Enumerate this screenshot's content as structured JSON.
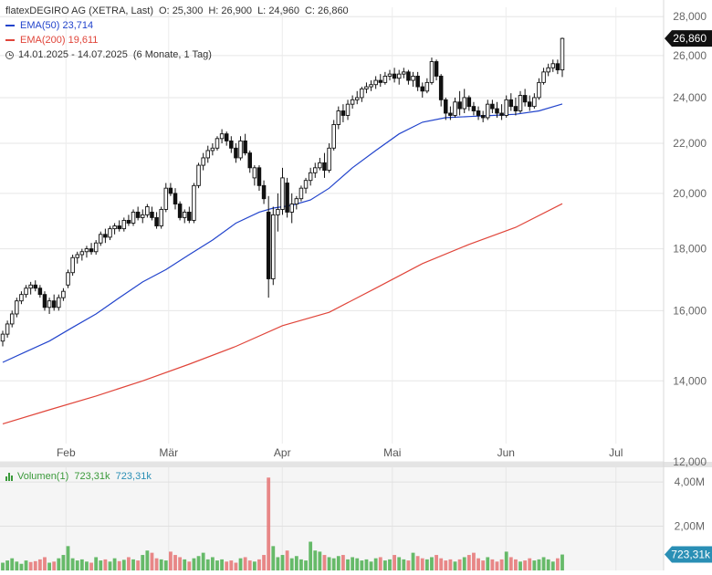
{
  "legend": {
    "instrument": "flatexDEGIRO AG (XETRA, Last)",
    "open_label": "O:",
    "open": "25,300",
    "high_label": "H:",
    "high": "26,900",
    "low_label": "L:",
    "low": "24,960",
    "close_label": "C:",
    "close": "26,860",
    "ema50_label": "EMA(50)",
    "ema50_value": "23,714",
    "ema200_label": "EMA(200)",
    "ema200_value": "19,611",
    "range": "14.01.2025 - 14.07.2025",
    "range_detail": "(6 Monate, 1 Tag)"
  },
  "volume_legend": {
    "label": "Volumen(1)",
    "value1": "723,31k",
    "value2": "723,31k"
  },
  "colors": {
    "ema50": "#2244cc",
    "ema200": "#e0453a",
    "candle": "#111111",
    "volume_up": "#4caf50",
    "volume_down": "#e57373",
    "badge_price": "#111111",
    "badge_volume": "#2a8fb5"
  },
  "chart_data": {
    "type": "candlestick",
    "y_scale": "log",
    "ylim": [
      12,
      28.5
    ],
    "xlim_days": [
      0,
      181
    ],
    "y_ticks": [
      12,
      14,
      16,
      18,
      20,
      22,
      24,
      26,
      28
    ],
    "y_tick_labels": [
      "12,000",
      "14,000",
      "16,000",
      "18,000",
      "20,000",
      "22,000",
      "24,000",
      "26,000",
      "28,000"
    ],
    "x_ticks": [
      {
        "day": 18,
        "label": "Feb"
      },
      {
        "day": 46,
        "label": "Mär"
      },
      {
        "day": 77,
        "label": "Apr"
      },
      {
        "day": 107,
        "label": "Mai"
      },
      {
        "day": 138,
        "label": "Jun"
      },
      {
        "day": 168,
        "label": "Jul"
      }
    ],
    "last_price_label": "26,860",
    "last_price": 26.86,
    "candles": [
      [
        0,
        15.1,
        15.4,
        14.95,
        15.3
      ],
      [
        1,
        15.3,
        15.7,
        15.2,
        15.6
      ],
      [
        2,
        15.6,
        16.0,
        15.5,
        15.9
      ],
      [
        3,
        15.9,
        16.4,
        15.8,
        16.3
      ],
      [
        4,
        16.3,
        16.6,
        16.2,
        16.5
      ],
      [
        5,
        16.5,
        16.8,
        16.4,
        16.7
      ],
      [
        6,
        16.7,
        16.9,
        16.5,
        16.8
      ],
      [
        7,
        16.8,
        16.95,
        16.6,
        16.7
      ],
      [
        8,
        16.7,
        16.8,
        16.4,
        16.5
      ],
      [
        9,
        16.5,
        16.6,
        16.0,
        16.1
      ],
      [
        10,
        16.1,
        16.4,
        15.9,
        16.3
      ],
      [
        11,
        16.3,
        16.5,
        16.0,
        16.1
      ],
      [
        12,
        16.1,
        16.5,
        16.0,
        16.4
      ],
      [
        13,
        16.4,
        16.7,
        16.3,
        16.6
      ],
      [
        14,
        16.8,
        17.3,
        16.7,
        17.2
      ],
      [
        15,
        17.2,
        17.8,
        17.1,
        17.7
      ],
      [
        16,
        17.7,
        17.9,
        17.5,
        17.8
      ],
      [
        17,
        17.8,
        18.0,
        17.6,
        17.9
      ],
      [
        18,
        17.9,
        18.1,
        17.7,
        18.0
      ],
      [
        19,
        18.0,
        18.2,
        17.8,
        17.9
      ],
      [
        20,
        17.9,
        18.3,
        17.8,
        18.2
      ],
      [
        21,
        18.2,
        18.6,
        18.1,
        18.5
      ],
      [
        22,
        18.5,
        18.7,
        18.2,
        18.4
      ],
      [
        23,
        18.4,
        18.8,
        18.3,
        18.7
      ],
      [
        24,
        18.7,
        18.9,
        18.5,
        18.8
      ],
      [
        25,
        18.8,
        19.0,
        18.6,
        18.7
      ],
      [
        26,
        18.7,
        19.1,
        18.6,
        19.0
      ],
      [
        27,
        19.0,
        19.2,
        18.8,
        18.9
      ],
      [
        28,
        18.9,
        19.4,
        18.8,
        19.3
      ],
      [
        29,
        19.3,
        19.5,
        19.0,
        19.1
      ],
      [
        30,
        19.1,
        19.4,
        18.9,
        19.2
      ],
      [
        31,
        19.2,
        19.6,
        19.1,
        19.5
      ],
      [
        32,
        19.3,
        19.5,
        19.0,
        19.1
      ],
      [
        33,
        19.1,
        19.3,
        18.7,
        18.8
      ],
      [
        34,
        18.8,
        19.5,
        18.7,
        19.4
      ],
      [
        35,
        19.4,
        20.4,
        19.3,
        20.2
      ],
      [
        36,
        20.2,
        20.4,
        19.9,
        20.0
      ],
      [
        37,
        20.0,
        20.2,
        19.4,
        19.6
      ],
      [
        38,
        19.6,
        19.7,
        19.0,
        19.1
      ],
      [
        39,
        19.1,
        19.4,
        18.9,
        19.3
      ],
      [
        40,
        19.3,
        19.5,
        18.9,
        19.0
      ],
      [
        41,
        19.0,
        20.4,
        18.9,
        20.3
      ],
      [
        42,
        20.3,
        21.2,
        20.2,
        21.1
      ],
      [
        43,
        21.1,
        21.6,
        20.9,
        21.4
      ],
      [
        44,
        21.4,
        21.9,
        21.2,
        21.7
      ],
      [
        45,
        21.7,
        22.0,
        21.5,
        21.8
      ],
      [
        46,
        21.8,
        22.3,
        21.7,
        22.2
      ],
      [
        47,
        22.2,
        22.6,
        22.0,
        22.4
      ],
      [
        48,
        22.4,
        22.5,
        21.9,
        22.1
      ],
      [
        49,
        22.1,
        22.3,
        21.6,
        21.8
      ],
      [
        50,
        21.8,
        22.0,
        21.2,
        21.4
      ],
      [
        51,
        21.4,
        22.3,
        21.3,
        22.1
      ],
      [
        52,
        22.1,
        22.4,
        21.5,
        21.6
      ],
      [
        53,
        21.6,
        21.7,
        20.8,
        21.0
      ],
      [
        54,
        20.6,
        21.1,
        20.3,
        21.0
      ],
      [
        55,
        21.0,
        21.1,
        20.1,
        20.3
      ],
      [
        56,
        20.3,
        20.5,
        19.6,
        19.8
      ],
      [
        57,
        19.3,
        19.9,
        16.4,
        17.0
      ],
      [
        58,
        17.0,
        19.5,
        16.8,
        19.2
      ],
      [
        59,
        19.2,
        20.0,
        18.6,
        19.4
      ],
      [
        60,
        19.4,
        21.0,
        19.2,
        20.6
      ],
      [
        61,
        20.4,
        20.6,
        19.1,
        19.3
      ],
      [
        62,
        19.3,
        20.0,
        18.9,
        19.6
      ],
      [
        63,
        19.6,
        19.9,
        19.4,
        19.8
      ],
      [
        64,
        19.8,
        20.3,
        19.7,
        20.2
      ],
      [
        65,
        20.2,
        20.6,
        20.0,
        20.5
      ],
      [
        66,
        20.5,
        21.0,
        20.3,
        20.8
      ],
      [
        67,
        20.8,
        21.2,
        20.6,
        21.0
      ],
      [
        68,
        21.0,
        21.4,
        20.9,
        21.2
      ],
      [
        69,
        21.2,
        21.6,
        20.6,
        20.9
      ],
      [
        70,
        20.9,
        22.0,
        20.8,
        21.8
      ],
      [
        71,
        21.8,
        23.0,
        21.7,
        22.8
      ],
      [
        72,
        22.8,
        23.6,
        22.6,
        23.4
      ],
      [
        73,
        23.4,
        23.7,
        22.9,
        23.2
      ],
      [
        74,
        23.2,
        23.9,
        23.0,
        23.7
      ],
      [
        75,
        23.7,
        24.1,
        23.5,
        23.9
      ],
      [
        76,
        23.9,
        24.3,
        23.7,
        24.0
      ],
      [
        77,
        24.0,
        24.5,
        23.8,
        24.4
      ],
      [
        78,
        24.4,
        24.7,
        24.2,
        24.5
      ],
      [
        79,
        24.5,
        24.8,
        24.3,
        24.6
      ],
      [
        80,
        24.6,
        25.0,
        24.4,
        24.8
      ],
      [
        81,
        24.8,
        25.1,
        24.5,
        24.7
      ],
      [
        82,
        24.7,
        25.2,
        24.6,
        25.0
      ],
      [
        83,
        25.0,
        25.3,
        24.8,
        25.1
      ],
      [
        84,
        25.1,
        25.4,
        24.7,
        24.9
      ],
      [
        85,
        24.9,
        25.3,
        24.6,
        25.1
      ],
      [
        86,
        25.1,
        25.4,
        24.9,
        25.2
      ],
      [
        87,
        25.2,
        25.3,
        24.6,
        24.8
      ],
      [
        88,
        24.8,
        25.2,
        24.5,
        25.0
      ],
      [
        89,
        25.0,
        25.2,
        24.3,
        24.5
      ],
      [
        90,
        24.5,
        24.7,
        24.0,
        24.3
      ],
      [
        91,
        24.3,
        24.9,
        24.2,
        24.7
      ],
      [
        92,
        24.7,
        25.9,
        24.6,
        25.7
      ],
      [
        93,
        25.7,
        25.8,
        24.8,
        25.0
      ],
      [
        94,
        25.0,
        25.1,
        23.6,
        23.9
      ],
      [
        95,
        23.9,
        24.0,
        23.0,
        23.3
      ],
      [
        96,
        23.3,
        23.6,
        23.0,
        23.2
      ],
      [
        97,
        23.2,
        24.0,
        23.1,
        23.8
      ],
      [
        98,
        23.8,
        24.3,
        23.2,
        23.5
      ],
      [
        99,
        23.5,
        24.4,
        23.3,
        24.0
      ],
      [
        100,
        24.0,
        24.1,
        23.4,
        23.6
      ],
      [
        101,
        23.6,
        23.8,
        23.2,
        23.4
      ],
      [
        102,
        23.4,
        23.6,
        23.0,
        23.2
      ],
      [
        103,
        23.2,
        23.4,
        22.9,
        23.1
      ],
      [
        104,
        23.1,
        23.9,
        23.0,
        23.7
      ],
      [
        105,
        23.7,
        23.9,
        23.3,
        23.5
      ],
      [
        106,
        23.5,
        23.8,
        23.1,
        23.3
      ],
      [
        107,
        23.3,
        23.7,
        23.0,
        23.2
      ],
      [
        108,
        23.2,
        24.1,
        23.1,
        23.9
      ],
      [
        109,
        23.9,
        24.2,
        23.4,
        23.6
      ],
      [
        110,
        23.6,
        24.0,
        23.2,
        23.4
      ],
      [
        111,
        23.4,
        24.3,
        23.3,
        24.1
      ],
      [
        112,
        24.1,
        24.4,
        23.6,
        23.8
      ],
      [
        113,
        23.8,
        24.1,
        23.4,
        23.6
      ],
      [
        114,
        23.6,
        24.2,
        23.5,
        24.0
      ],
      [
        115,
        24.0,
        24.9,
        23.9,
        24.7
      ],
      [
        116,
        24.7,
        25.4,
        24.6,
        25.2
      ],
      [
        117,
        25.2,
        25.6,
        25.0,
        25.4
      ],
      [
        118,
        25.4,
        25.8,
        25.2,
        25.6
      ],
      [
        119,
        25.6,
        25.8,
        25.1,
        25.3
      ],
      [
        120,
        25.3,
        26.9,
        24.96,
        26.86
      ]
    ],
    "ema50": [
      [
        0,
        14.5
      ],
      [
        5,
        14.8
      ],
      [
        10,
        15.1
      ],
      [
        15,
        15.5
      ],
      [
        20,
        15.9
      ],
      [
        25,
        16.4
      ],
      [
        30,
        16.9
      ],
      [
        35,
        17.3
      ],
      [
        40,
        17.8
      ],
      [
        45,
        18.3
      ],
      [
        50,
        18.9
      ],
      [
        55,
        19.3
      ],
      [
        58,
        19.45
      ],
      [
        62,
        19.55
      ],
      [
        66,
        19.75
      ],
      [
        70,
        20.2
      ],
      [
        75,
        21.0
      ],
      [
        80,
        21.7
      ],
      [
        85,
        22.4
      ],
      [
        90,
        22.9
      ],
      [
        95,
        23.1
      ],
      [
        100,
        23.15
      ],
      [
        105,
        23.2
      ],
      [
        110,
        23.25
      ],
      [
        115,
        23.4
      ],
      [
        120,
        23.71
      ]
    ],
    "ema200": [
      [
        0,
        12.9
      ],
      [
        10,
        13.25
      ],
      [
        20,
        13.6
      ],
      [
        30,
        14.0
      ],
      [
        40,
        14.45
      ],
      [
        50,
        14.95
      ],
      [
        60,
        15.55
      ],
      [
        70,
        15.95
      ],
      [
        80,
        16.7
      ],
      [
        90,
        17.5
      ],
      [
        100,
        18.15
      ],
      [
        110,
        18.75
      ],
      [
        120,
        19.61
      ]
    ],
    "volume": {
      "ylim": [
        0,
        4.5
      ],
      "y_ticks": [
        2,
        4
      ],
      "y_tick_labels": [
        "2,00M",
        "4,00M"
      ],
      "last_label": "723,31k",
      "last_value": 0.72,
      "bars": [
        0.35,
        0.45,
        0.55,
        0.4,
        0.3,
        0.45,
        0.38,
        0.42,
        0.5,
        0.6,
        0.35,
        0.4,
        0.55,
        0.7,
        1.1,
        0.55,
        0.45,
        0.5,
        0.4,
        0.35,
        0.6,
        0.45,
        0.5,
        0.4,
        0.55,
        0.42,
        0.48,
        0.6,
        0.5,
        0.45,
        0.7,
        0.9,
        0.8,
        0.55,
        0.5,
        0.45,
        0.85,
        0.7,
        0.6,
        0.5,
        0.4,
        0.55,
        0.65,
        0.8,
        0.5,
        0.6,
        0.45,
        0.5,
        0.4,
        0.45,
        0.35,
        0.55,
        0.6,
        0.45,
        0.4,
        0.5,
        0.7,
        4.2,
        1.1,
        0.6,
        0.7,
        0.9,
        0.55,
        0.65,
        0.5,
        0.45,
        1.3,
        0.9,
        0.85,
        0.7,
        0.6,
        0.55,
        0.65,
        0.7,
        0.5,
        0.6,
        0.55,
        0.45,
        0.5,
        0.4,
        0.55,
        0.6,
        0.45,
        0.5,
        0.7,
        0.6,
        0.5,
        0.45,
        0.8,
        0.65,
        0.55,
        0.5,
        0.6,
        0.7,
        0.55,
        0.45,
        0.5,
        0.4,
        0.5,
        0.6,
        0.7,
        0.8,
        0.55,
        0.45,
        0.6,
        0.5,
        0.4,
        0.5,
        0.85,
        0.6,
        0.5,
        0.4,
        0.45,
        0.55,
        0.45,
        0.5,
        0.6,
        0.5,
        0.4,
        0.55,
        0.72
      ],
      "bar_up": [
        1,
        1,
        1,
        1,
        1,
        1,
        0,
        0,
        0,
        0,
        1,
        0,
        1,
        1,
        1,
        1,
        1,
        1,
        1,
        0,
        1,
        1,
        0,
        1,
        1,
        0,
        1,
        0,
        1,
        0,
        1,
        1,
        0,
        0,
        1,
        1,
        0,
        0,
        0,
        1,
        0,
        1,
        1,
        1,
        1,
        1,
        1,
        1,
        0,
        0,
        0,
        1,
        0,
        0,
        1,
        0,
        0,
        0,
        1,
        1,
        1,
        0,
        1,
        1,
        1,
        1,
        1,
        1,
        1,
        0,
        1,
        1,
        1,
        0,
        1,
        1,
        1,
        1,
        1,
        1,
        1,
        0,
        1,
        1,
        0,
        1,
        1,
        0,
        1,
        0,
        0,
        1,
        1,
        0,
        0,
        0,
        0,
        1,
        0,
        1,
        0,
        0,
        0,
        0,
        1,
        0,
        0,
        0,
        1,
        0,
        0,
        1,
        0,
        0,
        1,
        1,
        1,
        1,
        1,
        0,
        1
      ]
    }
  }
}
